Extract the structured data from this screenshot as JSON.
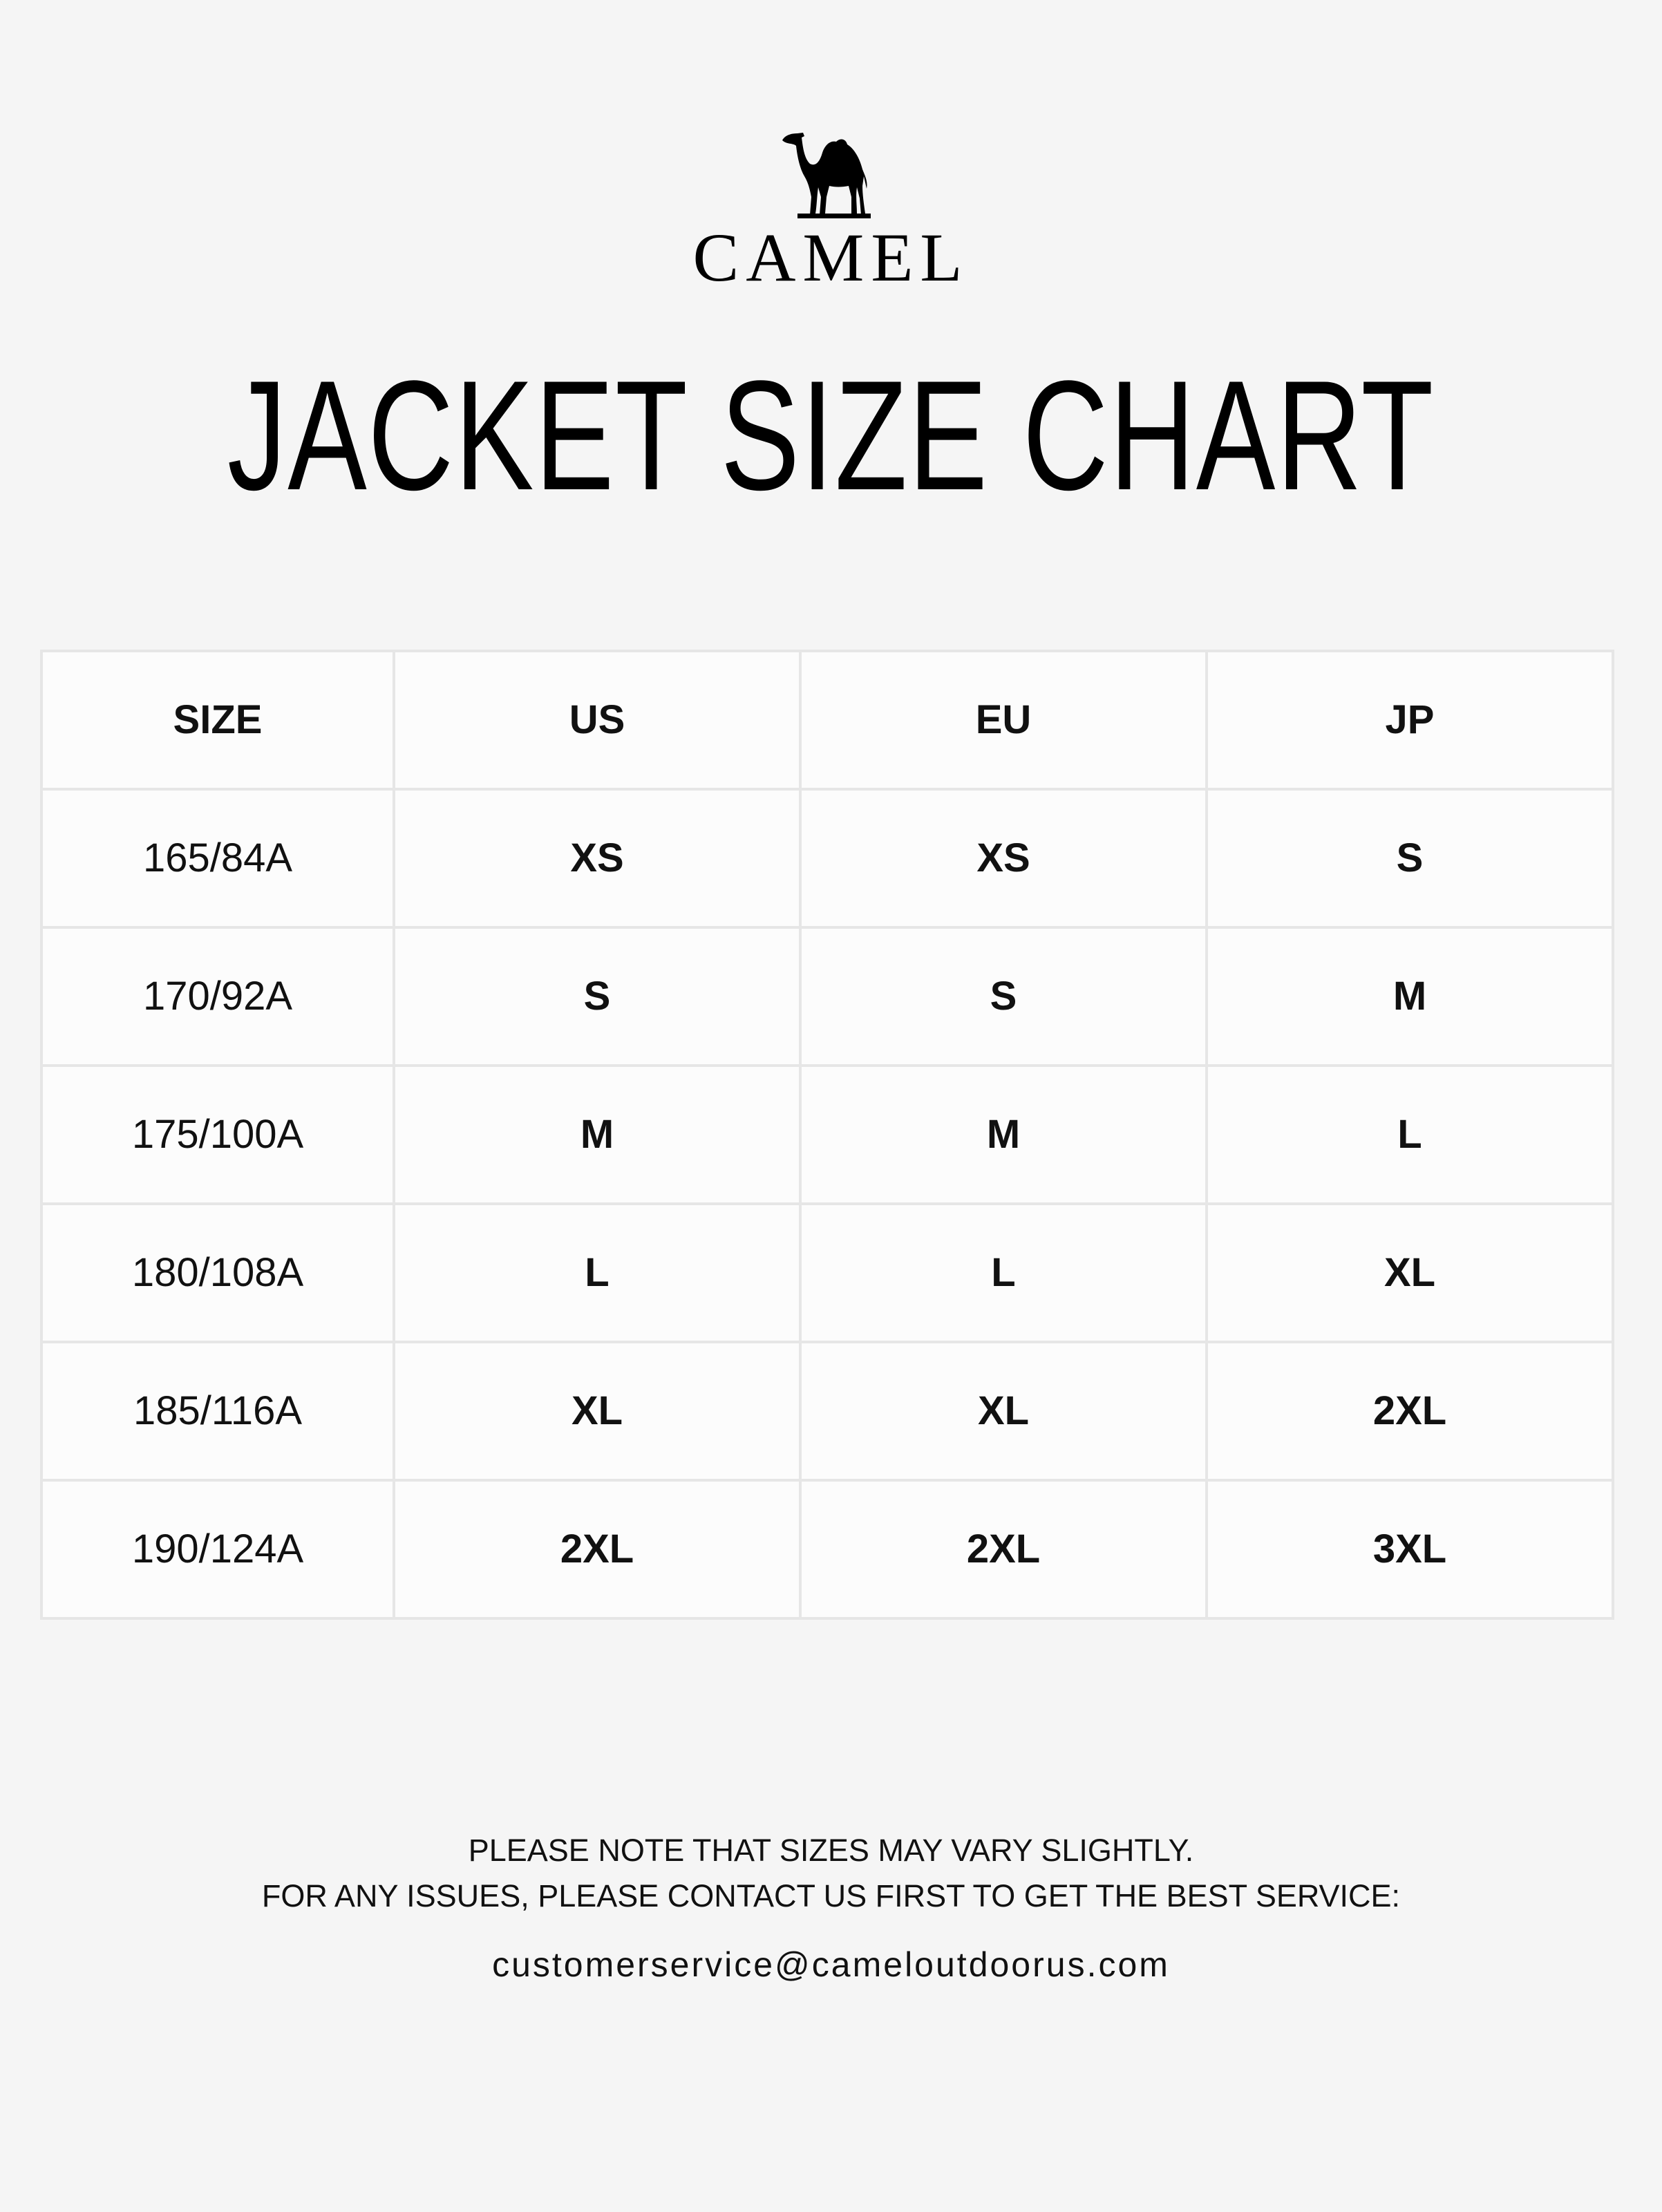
{
  "brand": {
    "logo_icon": "camel-icon",
    "name": "CAMEL"
  },
  "title": "JACKET SIZE CHART",
  "table": {
    "headers": [
      "SIZE",
      "US",
      "EU",
      "JP"
    ],
    "rows": [
      [
        "165/84A",
        "XS",
        "XS",
        "S"
      ],
      [
        "170/92A",
        "S",
        "S",
        "M"
      ],
      [
        "175/100A",
        "M",
        "M",
        "L"
      ],
      [
        "180/108A",
        "L",
        "L",
        "XL"
      ],
      [
        "185/116A",
        "XL",
        "XL",
        "2XL"
      ],
      [
        "190/124A",
        "2XL",
        "2XL",
        "3XL"
      ]
    ]
  },
  "footer": {
    "line1": "PLEASE NOTE THAT SIZES MAY VARY SLIGHTLY.",
    "line2": "FOR ANY ISSUES, PLEASE CONTACT US FIRST TO GET THE BEST SERVICE:",
    "email": "customerservice@cameloutdoorus.com"
  },
  "colors": {
    "background": "#f5f5f5",
    "cell": "#fcfcfc",
    "border": "#e6e6e6",
    "text": "#111111"
  }
}
